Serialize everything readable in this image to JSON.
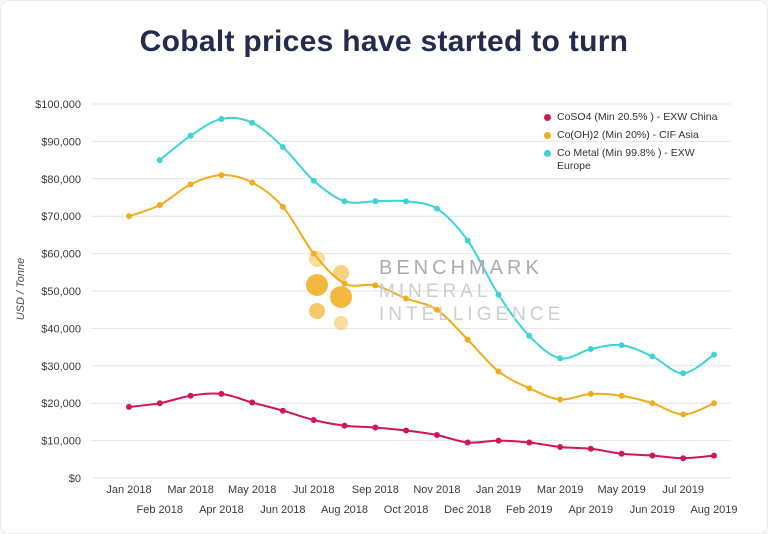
{
  "title": "Cobalt prices have started to turn",
  "watermark": {
    "line1": "BENCHMARK",
    "line2": "MINERAL",
    "line3": "INTELLIGENCE"
  },
  "colors": {
    "title_navy": "#242b4c",
    "grid": "#e4e4e4",
    "tick_text": "#3a3a3a",
    "watermark_brand": "#a8acb2",
    "watermark_sub": "#cbcfd3",
    "logo_yellow": "#f2b129",
    "background": "#ffffff"
  },
  "chart_data": {
    "type": "line",
    "title": "Cobalt prices have started to turn",
    "xlabel": "",
    "ylabel": "USD / Tonne",
    "ylim": [
      0,
      100000
    ],
    "ytick_step": 10000,
    "grid": "horizontal",
    "legend_position": "top-right",
    "categories": [
      "Jan 2018",
      "Feb 2018",
      "Mar 2018",
      "Apr 2018",
      "May 2018",
      "Jun 2018",
      "Jul 2018",
      "Aug 2018",
      "Sep 2018",
      "Oct 2018",
      "Nov 2018",
      "Dec 2018",
      "Jan 2019",
      "Feb 2019",
      "Mar 2019",
      "Apr 2019",
      "May 2019",
      "Jun 2019",
      "Jul 2019",
      "Aug 2019"
    ],
    "series": [
      {
        "name": "CoSO4 (Min 20.5% ) - EXW China",
        "color": "#d4145a",
        "values": [
          19000,
          20000,
          22000,
          22500,
          20200,
          18000,
          15500,
          14000,
          13500,
          12700,
          11500,
          9500,
          10000,
          9500,
          8300,
          7800,
          6500,
          6000,
          5300,
          6000
        ]
      },
      {
        "name": "Co(OH)2 (Min 20%) - CIF Asia",
        "color": "#f0ad1b",
        "values": [
          70000,
          73000,
          78500,
          81000,
          79000,
          72500,
          60000,
          52000,
          51500,
          48000,
          45000,
          37000,
          28500,
          24000,
          21000,
          22500,
          22000,
          20000,
          17000,
          20000
        ]
      },
      {
        "name": "Co Metal (Min 99.8% ) - EXW Europe",
        "color": "#3fd4d4",
        "values": [
          null,
          85000,
          91500,
          96000,
          95000,
          88500,
          79500,
          74000,
          74000,
          74000,
          72000,
          63500,
          49000,
          38000,
          32000,
          34500,
          35500,
          32500,
          28000,
          33000
        ]
      }
    ]
  }
}
